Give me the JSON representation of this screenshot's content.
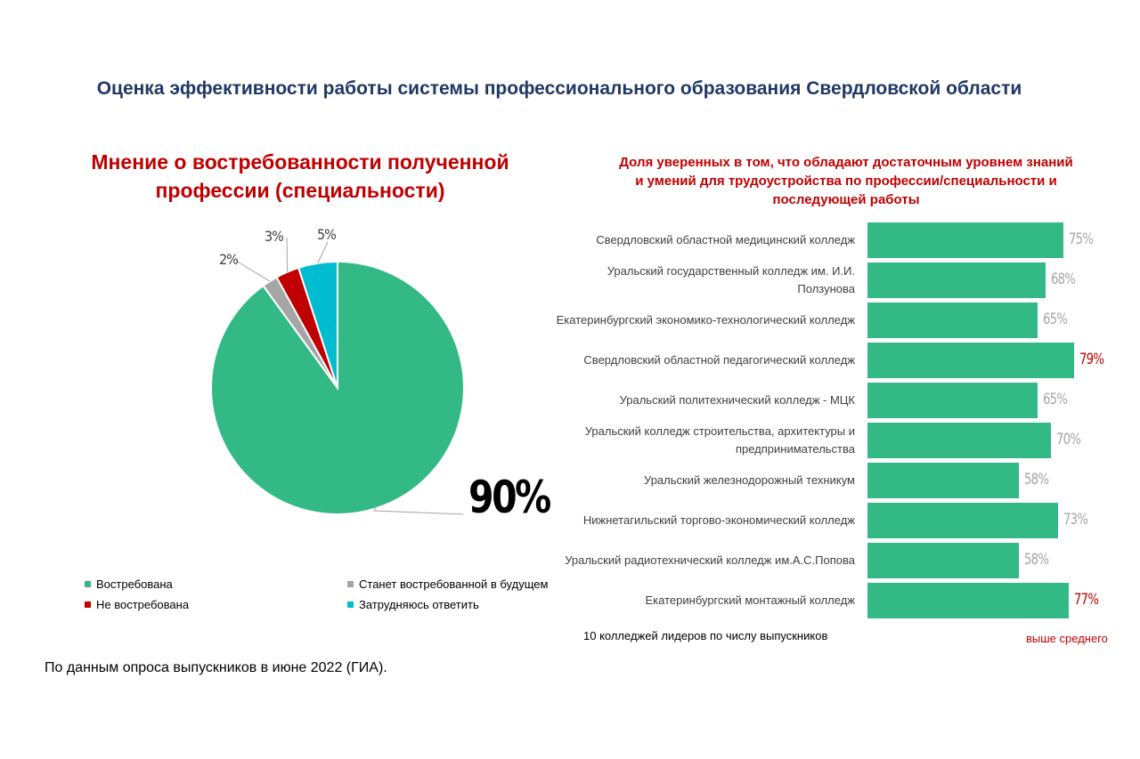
{
  "title": "Оценка эффективности работы системы профессионального образования Свердловской области",
  "source_note": "По данным опроса выпускников в июне 2022 (ГИА).",
  "chart_data": [
    {
      "type": "pie",
      "title": "Мнение о востребованности полученной профессии (специальности)",
      "slices": [
        {
          "name": "Востребована",
          "value": 90,
          "label": "90%",
          "color": "#33b985"
        },
        {
          "name": "Станет востребованной в будущем",
          "value": 2,
          "label": "2%",
          "color": "#a5a5a5"
        },
        {
          "name": "Не востребована",
          "value": 3,
          "label": "3%",
          "color": "#c00000"
        },
        {
          "name": "Затрудняюсь ответить",
          "value": 5,
          "label": "5%",
          "color": "#00bcd0"
        }
      ],
      "legend_position": "bottom"
    },
    {
      "type": "bar",
      "orientation": "horizontal",
      "title": "Доля уверенных в том, что обладают достаточным уровнем знаний и умений для трудоустройства по профессии/специальности и последующей работы",
      "categories": [
        "Свердловский областной медицинский колледж",
        "Уральский государственный колледж им. И.И. Ползунова",
        "Екатеринбургский экономико-технологический колледж",
        "Свердловский областной педагогический колледж",
        "Уральский политехнический колледж - МЦК",
        "Уральский колледж строительства, архитектуры и предпринимательства",
        "Уральский железнодорожный техникум",
        "Нижнетагильский торгово-экономический колледж",
        "Уральский радиотехнический колледж им.А.С.Попова",
        "Екатеринбургский монтажный колледж"
      ],
      "values": [
        75,
        68,
        65,
        79,
        65,
        70,
        58,
        73,
        58,
        77
      ],
      "value_labels": [
        "75%",
        "68%",
        "65%",
        "79%",
        "65%",
        "70%",
        "58%",
        "73%",
        "58%",
        "77%"
      ],
      "highlight": [
        false,
        false,
        false,
        true,
        false,
        false,
        false,
        false,
        false,
        true
      ],
      "bar_color": "#33b985",
      "label_color": "#a5a5a5",
      "highlight_color": "#c00000",
      "xlim": [
        0,
        79
      ],
      "footnote": "10 колледжей лидеров по числу выпускников",
      "highlight_note": "выше среднего"
    }
  ]
}
